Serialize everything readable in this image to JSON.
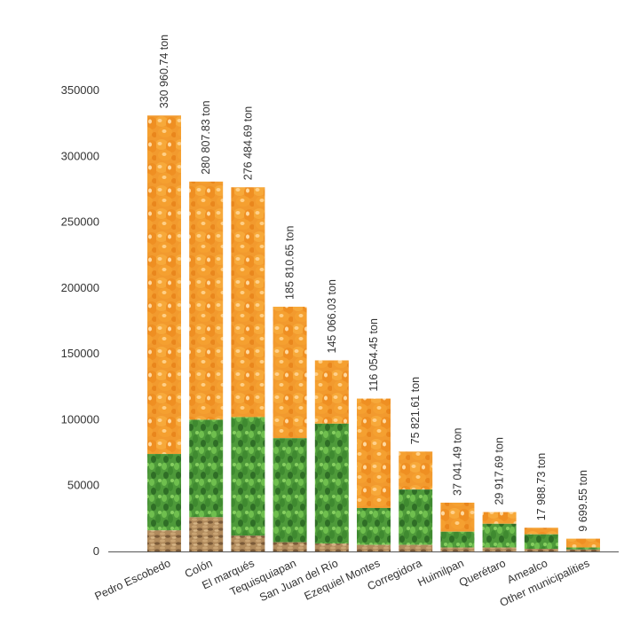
{
  "chart_data": {
    "type": "bar",
    "title": "",
    "xlabel": "",
    "ylabel": "",
    "ylim": [
      0,
      350000
    ],
    "yticks": [
      "0",
      "50000",
      "100000",
      "150000",
      "200000",
      "250000",
      "300000",
      "350000"
    ],
    "grid": false,
    "categories": [
      "Pedro Escobedo",
      "Colón",
      "El marqués",
      "Tequisquiapan",
      "San Juan del Río",
      "Ezequiel Montes",
      "Corregidora",
      "Huimilpan",
      "Querétaro",
      "Amealco",
      "Other municipalities"
    ],
    "values": [
      330960.74,
      280807.83,
      276484.69,
      185810.65,
      145066.03,
      116054.45,
      75821.61,
      37041.49,
      29917.69,
      17988.73,
      9699.55
    ],
    "data_labels": [
      "330 960.74 ton",
      "280 807.83 ton",
      "276 484.69 ton",
      "185 810.65 ton",
      "145 066.03 ton",
      "116 054.45 ton",
      "75 821.61 ton",
      "37 041.49 ton",
      "29 917.69 ton",
      "17 988.73 ton",
      "9 699.55 ton"
    ],
    "segments_approx": [
      {
        "grain": 16000,
        "green": 74000
      },
      {
        "grain": 26000,
        "green": 100000
      },
      {
        "grain": 12000,
        "green": 102000
      },
      {
        "grain": 7000,
        "green": 86000
      },
      {
        "grain": 6000,
        "green": 97000
      },
      {
        "grain": 5000,
        "green": 33000
      },
      {
        "grain": 5000,
        "green": 47000
      },
      {
        "grain": 3000,
        "green": 15000
      },
      {
        "grain": 3000,
        "green": 21000
      },
      {
        "grain": 2000,
        "green": 13000
      },
      {
        "grain": 1500,
        "green": 3000
      }
    ],
    "colors": {
      "corn": "#f29a2e",
      "corn_light": "#ffd08a",
      "green": "#4e9a3a",
      "green_dark": "#2f6e26",
      "grain": "#b08a5c",
      "grain_dark": "#7a5a38",
      "axis": "#555555"
    }
  }
}
